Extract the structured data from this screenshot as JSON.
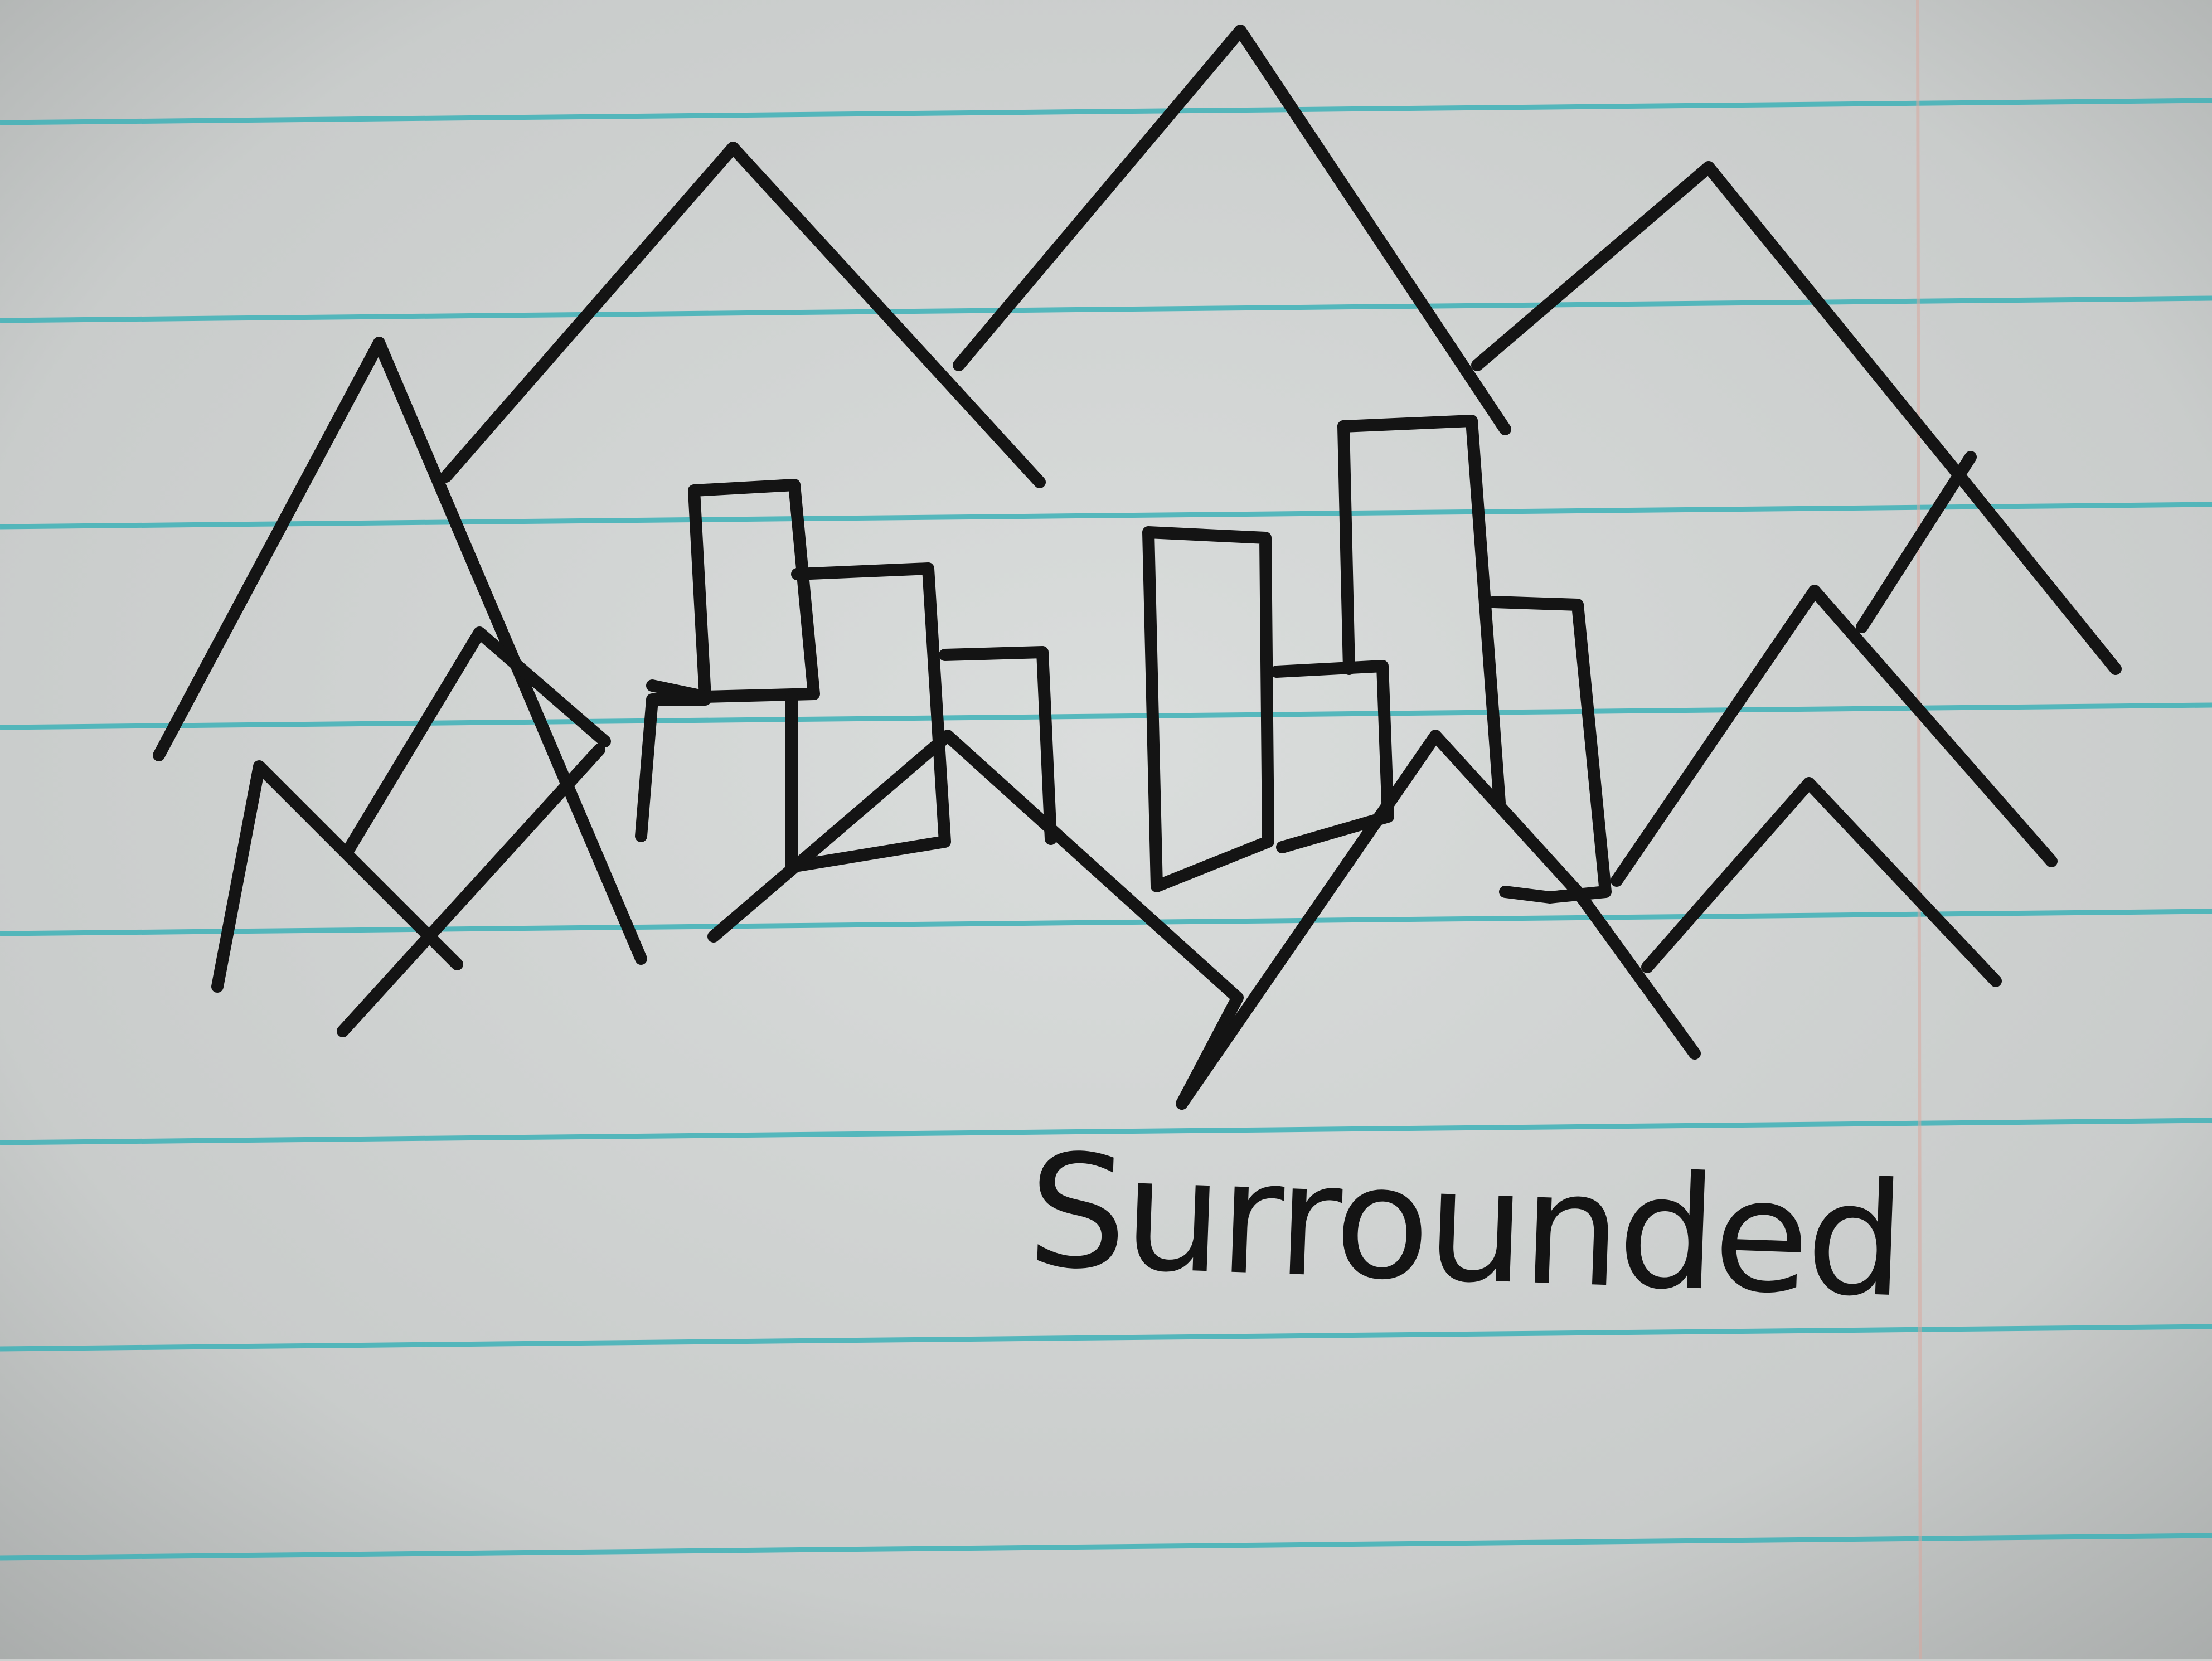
{
  "caption": "Surrounded",
  "colors": {
    "paper": "#cdd0cf",
    "rule_line": "#3fb2b8",
    "margin_line": "#d9a9a0",
    "ink": "#141414"
  }
}
